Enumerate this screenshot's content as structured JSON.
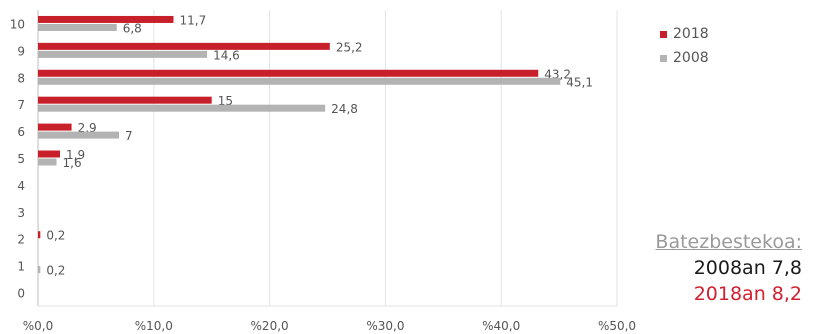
{
  "chart_data": {
    "type": "bar",
    "orientation": "horizontal",
    "categories": [
      "0",
      "1",
      "2",
      "3",
      "4",
      "5",
      "6",
      "7",
      "8",
      "9",
      "10"
    ],
    "series": [
      {
        "name": "2018",
        "color": "#c8202a",
        "values": [
          null,
          null,
          0.2,
          null,
          null,
          1.9,
          2.9,
          15,
          43.2,
          25.2,
          11.7
        ],
        "labels": [
          "",
          "",
          "0,2",
          "",
          "",
          "1,9",
          "2,9",
          "15",
          "43,2",
          "25,2",
          "11,7"
        ]
      },
      {
        "name": "2008",
        "color": "#b3b3b3",
        "values": [
          null,
          0.2,
          null,
          null,
          null,
          1.6,
          7,
          24.8,
          45.1,
          14.6,
          6.8
        ],
        "labels": [
          "",
          "0,2",
          "",
          "",
          "",
          "1,6",
          "7",
          "24,8",
          "45,1",
          "14,6",
          "6,8"
        ]
      }
    ],
    "xlim": [
      0,
      50
    ],
    "xticks": [
      "%0,0",
      "%10,0",
      "%20,0",
      "%30,0",
      "%40,0",
      "%50,0"
    ],
    "grid": "vertical",
    "legend": "top-right"
  },
  "average": {
    "title": "Batezbestekoa:",
    "line_2008": "2008an 7,8",
    "line_2018": "2018an 8,2"
  }
}
